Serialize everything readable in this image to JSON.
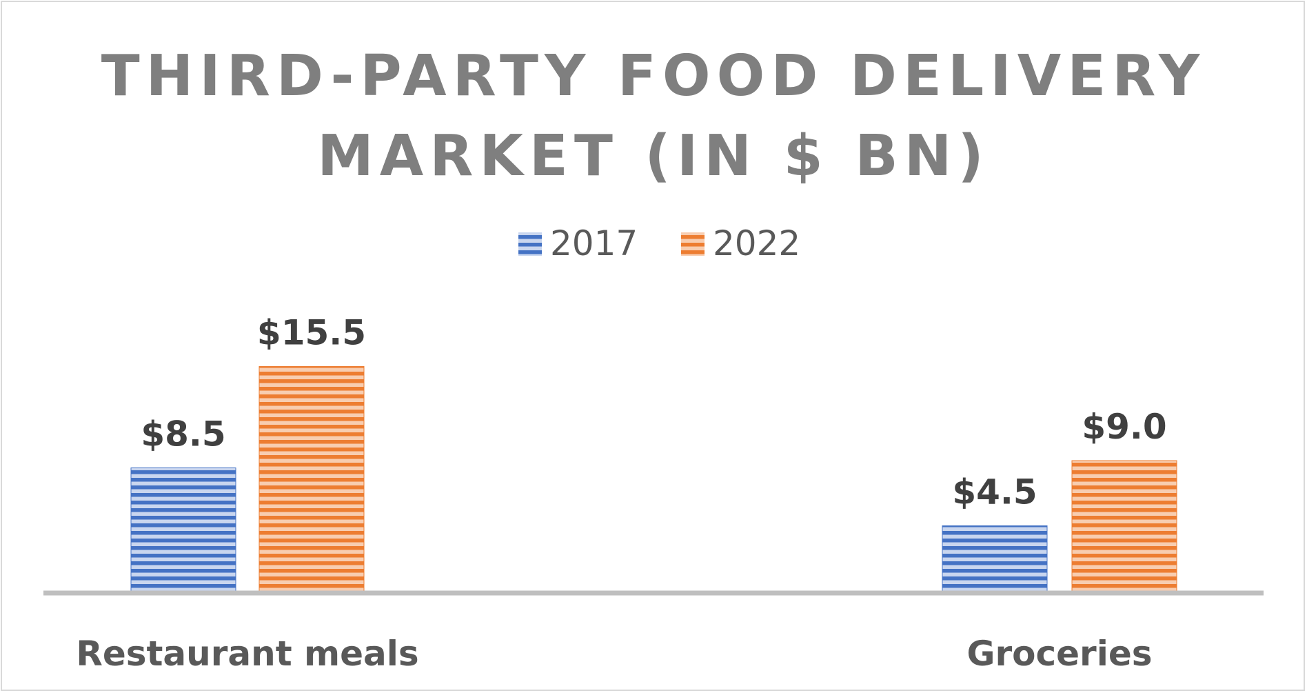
{
  "chart_data": {
    "type": "bar",
    "title_lines": [
      "THIRD-PARTY FOOD DELIVERY",
      "MARKET (IN $ BN)"
    ],
    "categories": [
      "Restaurant meals",
      "Groceries"
    ],
    "series": [
      {
        "name": "2017",
        "values": [
          8.5,
          4.5
        ],
        "labels": [
          "$8.5",
          "$4.5"
        ],
        "color": "#4472c4",
        "light_color": "#c9d6ef"
      },
      {
        "name": "2022",
        "values": [
          15.5,
          9.0
        ],
        "labels": [
          "$15.5",
          "$9.0"
        ],
        "color": "#ed7d31",
        "light_color": "#f8cdb0"
      }
    ],
    "ylim": [
      0,
      17.5
    ],
    "grid": false,
    "y_axis_visible": false,
    "legend_placement": "top",
    "pattern": "horizontal-stripes"
  }
}
